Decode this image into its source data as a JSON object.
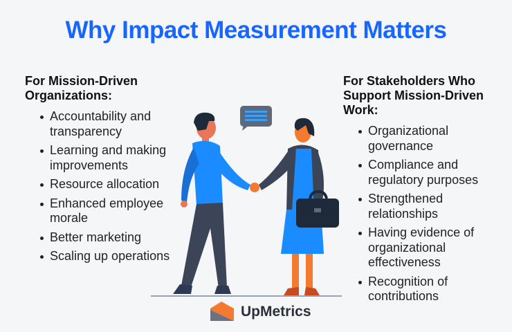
{
  "title": "Why Impact Measurement Matters",
  "left": {
    "heading": "For Mission-Driven Organizations:",
    "items": [
      "Accountability and transparency",
      "Learning and making improvements",
      "Resource allocation",
      "Enhanced employee morale",
      "Better marketing",
      "Scaling up operations"
    ]
  },
  "right": {
    "heading": "For Stakeholders Who Support Mission-Driven Work:",
    "items": [
      "Organizational governance",
      "Compliance and regulatory purposes",
      "Strengthened relationships",
      "Having evidence of organizational effectiveness",
      "Recognition of contributions"
    ]
  },
  "logo": {
    "text": "UpMetrics"
  },
  "colors": {
    "title": "#1766ff",
    "background": "#f5f6f8",
    "accent_orange": "#f47a30"
  }
}
